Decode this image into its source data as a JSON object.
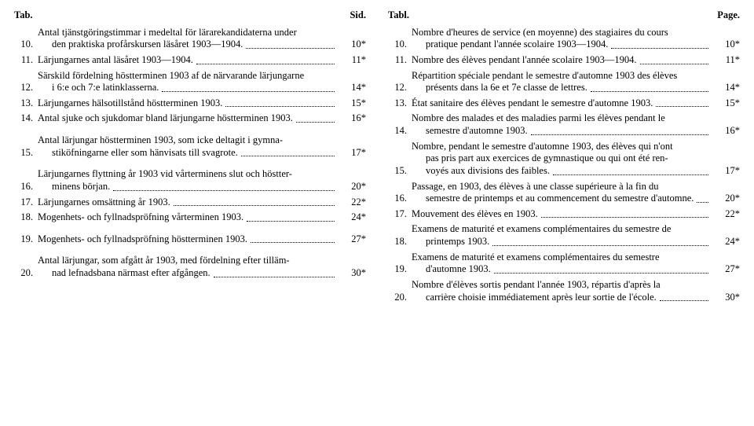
{
  "left": {
    "header_tab": "Tab.",
    "header_page": "Sid.",
    "items": [
      {
        "n": "10.",
        "lines": [
          "Antal tjänstgöringstimmar i medeltal för lärarekandidaterna under",
          "den praktiska profårskursen läsåret 1903—1904."
        ],
        "pg": "10*"
      },
      {
        "n": "11.",
        "lines": [
          "Lärjungarnes antal läsåret 1903—1904."
        ],
        "pg": "11*"
      },
      {
        "n": "12.",
        "lines": [
          "Särskild fördelning höstterminen 1903 af de närvarande lärjungarne",
          "i 6:e och 7:e latinklasserna."
        ],
        "pg": "14*"
      },
      {
        "n": "13.",
        "lines": [
          "Lärjungarnes hälsotillstånd höstterminen 1903."
        ],
        "pg": "15*"
      },
      {
        "n": "14.",
        "lines": [
          "Antal sjuke och sjukdomar bland lärjungarne höstterminen 1903."
        ],
        "pg": "16*",
        "gap_after": true
      },
      {
        "n": "15.",
        "lines": [
          "Antal lärjungar höstterminen 1903, som icke deltagit i gymna-",
          "stiköfningarne eller som hänvisats till svagrote."
        ],
        "pg": "17*",
        "gap_after": true
      },
      {
        "n": "16.",
        "lines": [
          "Lärjungarnes flyttning år 1903 vid vårterminens slut och höstter-",
          "minens början."
        ],
        "pg": "20*"
      },
      {
        "n": "17.",
        "lines": [
          "Lärjungarnes omsättning år 1903."
        ],
        "pg": "22*"
      },
      {
        "n": "18.",
        "lines": [
          "Mogenhets- och fyllnadspröfning vårterminen 1903."
        ],
        "pg": "24*",
        "gap_after": true
      },
      {
        "n": "19.",
        "lines": [
          "Mogenhets- och fyllnadspröfning höstterminen 1903."
        ],
        "pg": "27*",
        "gap_after": true
      },
      {
        "n": "20.",
        "lines": [
          "Antal lärjungar, som afgått år 1903, med fördelning efter tilläm-",
          "nad lefnadsbana närmast efter afgången."
        ],
        "pg": "30*"
      }
    ]
  },
  "right": {
    "header_tab": "Tabl.",
    "header_page": "Page.",
    "items": [
      {
        "n": "10.",
        "lines": [
          "Nombre d'heures de service (en moyenne) des stagiaires du cours",
          "pratique pendant l'année scolaire 1903—1904."
        ],
        "pg": "10*"
      },
      {
        "n": "11.",
        "lines": [
          "Nombre des élèves pendant l'année scolaire 1903—1904."
        ],
        "pg": "11*"
      },
      {
        "n": "12.",
        "lines": [
          "Répartition spéciale pendant le semestre d'automne 1903 des élèves",
          "présents dans la 6e et 7e classe de lettres."
        ],
        "pg": "14*"
      },
      {
        "n": "13.",
        "lines": [
          "État sanitaire des élèves pendant le semestre d'automne 1903."
        ],
        "pg": "15*"
      },
      {
        "n": "14.",
        "lines": [
          "Nombre des malades et des maladies parmi les élèves pendant le",
          "semestre d'automne 1903."
        ],
        "pg": "16*"
      },
      {
        "n": "15.",
        "lines": [
          "Nombre, pendant le semestre d'automne 1903, des élèves qui n'ont",
          "pas pris part aux exercices de gymnastique ou qui ont été ren-",
          "voyés aux divisions des faibles."
        ],
        "pg": "17*"
      },
      {
        "n": "16.",
        "lines": [
          "Passage, en 1903, des élèves à une classe supérieure à la fin du",
          "semestre de printemps et au commencement du semestre d'automne."
        ],
        "pg": "20*"
      },
      {
        "n": "17.",
        "lines": [
          "Mouvement des élèves en 1903."
        ],
        "pg": "22*"
      },
      {
        "n": "18.",
        "lines": [
          "Examens de maturité et examens complémentaires du semestre de",
          "printemps 1903."
        ],
        "pg": "24*"
      },
      {
        "n": "19.",
        "lines": [
          "Examens de maturité et examens complémentaires du semestre",
          "d'automne 1903."
        ],
        "pg": "27*"
      },
      {
        "n": "20.",
        "lines": [
          "Nombre d'élèves sortis pendant l'année 1903, répartis d'après la",
          "carrière choisie immédiatement après leur sortie de l'école."
        ],
        "pg": "30*"
      }
    ]
  }
}
